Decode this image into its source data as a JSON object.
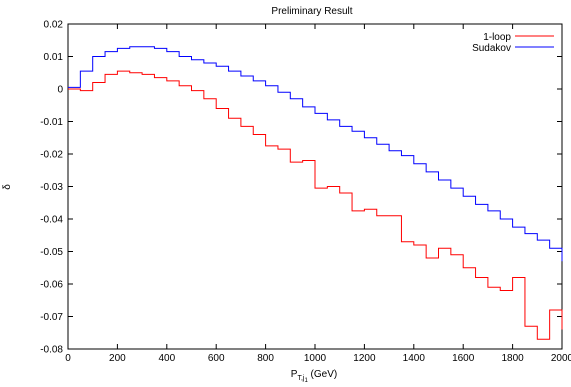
{
  "chart_data": {
    "type": "line",
    "title": "Preliminary Result",
    "xlabel": "P",
    "xlabel_sub": "T,j",
    "xlabel_subsub": "1",
    "xlabel_unit": " (GeV)",
    "ylabel": "δ",
    "xlim": [
      0,
      2000
    ],
    "ylim": [
      -0.08,
      0.02
    ],
    "x_ticks": [
      0,
      200,
      400,
      600,
      800,
      1000,
      1200,
      1400,
      1600,
      1800,
      2000
    ],
    "x_tick_labels": [
      "0",
      "200",
      "400",
      "600",
      "800",
      "1000",
      "1200",
      "1400",
      "1600",
      "1800",
      "2000"
    ],
    "y_ticks": [
      -0.08,
      -0.07,
      -0.06,
      -0.05,
      -0.04,
      -0.03,
      -0.02,
      -0.01,
      0,
      0.01,
      0.02
    ],
    "y_tick_labels": [
      "-0.08",
      "-0.07",
      "-0.06",
      "-0.05",
      "-0.04",
      "-0.03",
      "-0.02",
      "-0.01",
      "0",
      "0.01",
      "0.02"
    ],
    "grid": false,
    "legend_position": "top-right",
    "bin_edges": [
      0,
      50,
      100,
      150,
      200,
      250,
      300,
      350,
      400,
      450,
      500,
      550,
      600,
      650,
      700,
      750,
      800,
      850,
      900,
      950,
      1000,
      1050,
      1100,
      1150,
      1200,
      1250,
      1300,
      1350,
      1400,
      1450,
      1500,
      1550,
      1600,
      1650,
      1700,
      1750,
      1800,
      1850,
      1900,
      1950,
      2000
    ],
    "series": [
      {
        "name": "1-loop",
        "color": "#ff0000",
        "values": [
          0.0,
          -0.0005,
          0.002,
          0.0045,
          0.0055,
          0.005,
          0.0045,
          0.0035,
          0.0025,
          0.001,
          -0.0005,
          -0.003,
          -0.006,
          -0.009,
          -0.0115,
          -0.014,
          -0.0175,
          -0.0185,
          -0.0225,
          -0.022,
          -0.0305,
          -0.03,
          -0.032,
          -0.0375,
          -0.037,
          -0.039,
          -0.039,
          -0.047,
          -0.048,
          -0.052,
          -0.049,
          -0.051,
          -0.055,
          -0.058,
          -0.061,
          -0.062,
          -0.058,
          -0.073,
          -0.077,
          -0.068,
          -0.074
        ]
      },
      {
        "name": "Sudakov",
        "color": "#0000ff",
        "values": [
          0.0005,
          0.0055,
          0.01,
          0.0115,
          0.0125,
          0.013,
          0.013,
          0.0125,
          0.0115,
          0.01,
          0.009,
          0.008,
          0.007,
          0.0055,
          0.004,
          0.0025,
          0.001,
          -0.001,
          -0.003,
          -0.0055,
          -0.0075,
          -0.0095,
          -0.0115,
          -0.013,
          -0.015,
          -0.017,
          -0.019,
          -0.0205,
          -0.023,
          -0.0255,
          -0.028,
          -0.0305,
          -0.033,
          -0.0355,
          -0.0375,
          -0.04,
          -0.0425,
          -0.0445,
          -0.0465,
          -0.049,
          -0.053
        ]
      }
    ]
  }
}
